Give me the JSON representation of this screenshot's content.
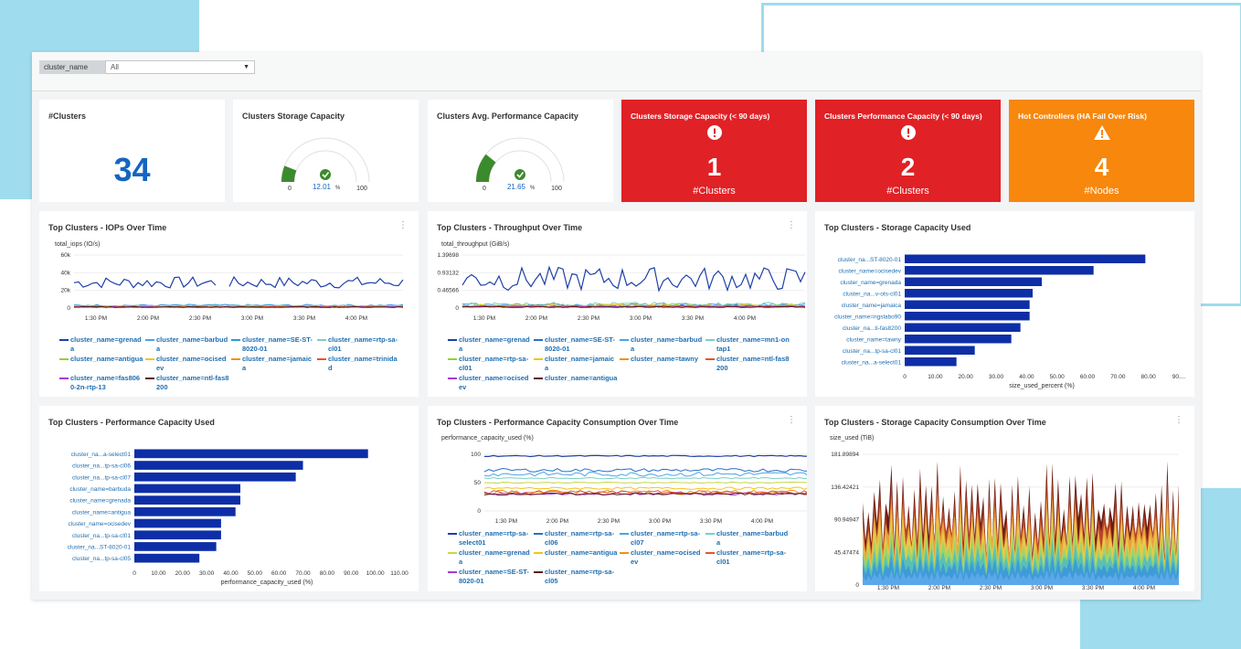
{
  "filter": {
    "label": "cluster_name",
    "value": "All"
  },
  "kpi": {
    "clusters": {
      "title": "#Clusters",
      "value": "34"
    },
    "storage_gauge": {
      "title": "Clusters Storage Capacity",
      "value": "12.01",
      "unit": "%",
      "min": "0",
      "max": "100",
      "color": "#3c8a2e"
    },
    "perf_gauge": {
      "title": "Clusters Avg. Performance Capacity",
      "value": "21.65",
      "unit": "%",
      "min": "0",
      "max": "100",
      "color": "#3c8a2e"
    },
    "alert_storage": {
      "title": "Clusters Storage Capacity (< 90 days)",
      "value": "1",
      "sub": "#Clusters",
      "color": "#e02126",
      "icon": "exclamation-circle-icon"
    },
    "alert_perf": {
      "title": "Clusters Performance Capacity (< 90 days)",
      "value": "2",
      "sub": "#Clusters",
      "color": "#e02126",
      "icon": "exclamation-circle-icon"
    },
    "alert_hot": {
      "title": "Hot Controllers (HA Fail Over Risk)",
      "value": "4",
      "sub": "#Nodes",
      "color": "#f7870d",
      "icon": "warning-triangle-icon"
    }
  },
  "panels": {
    "iops": {
      "title": "Top Clusters - IOPs Over Time",
      "ylabel": "total_iops (IO/s)",
      "yticks": [
        "60k",
        "40k",
        "20k",
        "0"
      ],
      "xticks": [
        "1:30 PM",
        "2:00 PM",
        "2:30 PM",
        "3:00 PM",
        "3:30 PM",
        "4:00 PM"
      ],
      "legend": [
        {
          "name": "cluster_name=grenada",
          "color": "#1f3fa6"
        },
        {
          "name": "cluster_name=barbuda",
          "color": "#4da3e6"
        },
        {
          "name": "cluster_name=SE-ST-8020-01",
          "color": "#2b9bd8"
        },
        {
          "name": "cluster_name=rtp-sa-cl01",
          "color": "#7ccfc3"
        },
        {
          "name": "cluster_name=antigua",
          "color": "#9acd32"
        },
        {
          "name": "cluster_name=ocisedev",
          "color": "#f2c41a"
        },
        {
          "name": "cluster_name=jamaica",
          "color": "#f2901a"
        },
        {
          "name": "cluster_name=trinidad",
          "color": "#e8542c"
        },
        {
          "name": "cluster_name=fas8060-2n-rtp-13",
          "color": "#a23bd6"
        },
        {
          "name": "cluster_name=ntl-fas8200",
          "color": "#5a1a1a"
        }
      ]
    },
    "throughput": {
      "title": "Top Clusters - Throughput Over Time",
      "ylabel": "total_throughput (GiB/s)",
      "yticks": [
        "1.39698",
        "0.93132",
        "0.46566",
        "0"
      ],
      "xticks": [
        "1:30 PM",
        "2:00 PM",
        "2:30 PM",
        "3:00 PM",
        "3:30 PM",
        "4:00 PM"
      ],
      "legend": [
        {
          "name": "cluster_name=grenada",
          "color": "#1f3fa6"
        },
        {
          "name": "cluster_name=SE-ST-8020-01",
          "color": "#2b6fc8"
        },
        {
          "name": "cluster_name=barbuda",
          "color": "#4da3e6"
        },
        {
          "name": "cluster_name=mn1-ontap1",
          "color": "#7ccfc3"
        },
        {
          "name": "cluster_name=rtp-sa-cl01",
          "color": "#9acd32"
        },
        {
          "name": "cluster_name=jamaica",
          "color": "#f2c41a"
        },
        {
          "name": "cluster_name=tawny",
          "color": "#f2901a"
        },
        {
          "name": "cluster_name=ntl-fas8200",
          "color": "#e8542c"
        },
        {
          "name": "cluster_name=ocisedev",
          "color": "#a23bd6"
        },
        {
          "name": "cluster_name=antigua",
          "color": "#5a1a1a"
        }
      ]
    },
    "storage_used": {
      "title": "Top Clusters - Storage Capacity Used",
      "xlabel": "size_used_percent (%)",
      "xticks": [
        "0",
        "10.00",
        "20.00",
        "30.00",
        "40.00",
        "50.00",
        "60.00",
        "70.00",
        "80.00",
        "90...."
      ],
      "bar_color": "#0d2ea6"
    },
    "perf_used": {
      "title": "Top Clusters - Performance Capacity Used",
      "xlabel": "performance_capacity_used (%)",
      "xticks": [
        "0",
        "10.00",
        "20.00",
        "30.00",
        "40.00",
        "50.00",
        "60.00",
        "70.00",
        "80.00",
        "90.00",
        "100.00",
        "110.00"
      ],
      "bar_color": "#0d2ea6"
    },
    "perf_consumption": {
      "title": "Top Clusters - Performance Capacity Consumption Over Time",
      "ylabel": "performance_capacity_used (%)",
      "yticks": [
        "100",
        "50",
        "0"
      ],
      "xticks": [
        "1:30 PM",
        "2:00 PM",
        "2:30 PM",
        "3:00 PM",
        "3:30 PM",
        "4:00 PM"
      ],
      "legend": [
        {
          "name": "cluster_name=rtp-sa-select01",
          "color": "#1f3fa6"
        },
        {
          "name": "cluster_name=rtp-sa-cl06",
          "color": "#2b6fc8"
        },
        {
          "name": "cluster_name=rtp-sa-cl07",
          "color": "#4da3e6"
        },
        {
          "name": "cluster_name=barbuda",
          "color": "#7ccfc3"
        },
        {
          "name": "cluster_name=grenada",
          "color": "#c8d84a"
        },
        {
          "name": "cluster_name=antigua",
          "color": "#f2c41a"
        },
        {
          "name": "cluster_name=ocisedev",
          "color": "#f2901a"
        },
        {
          "name": "cluster_name=rtp-sa-cl01",
          "color": "#e8542c"
        },
        {
          "name": "cluster_name=SE-ST-8020-01",
          "color": "#a23bd6"
        },
        {
          "name": "cluster_name=rtp-sa-cl05",
          "color": "#5a1a1a"
        }
      ]
    },
    "storage_consumption": {
      "title": "Top Clusters - Storage Capacity Consumption Over Time",
      "ylabel": "size_used (TiB)",
      "yticks": [
        "181.89894",
        "136.42421",
        "90.94947",
        "45.47474",
        "0"
      ],
      "xticks": [
        "1:30 PM",
        "2:00 PM",
        "2:30 PM",
        "3:00 PM",
        "3:30 PM",
        "4:00 PM"
      ]
    }
  },
  "chart_data": [
    {
      "type": "bar",
      "title": "Top Clusters - Storage Capacity Used",
      "orientation": "horizontal",
      "categories": [
        "cluster_na...ST-8020-01",
        "cluster_name=ocisedev",
        "cluster_name=grenada",
        "cluster_na...v-ots-cl01",
        "cluster_name=jamaica",
        "cluster_name=ngslabo90",
        "cluster_na...ti-fas8200",
        "cluster_name=tawny",
        "cluster_na...tp-sa-cl01",
        "cluster_na...a-select01"
      ],
      "values": [
        79,
        62,
        45,
        42,
        41,
        41,
        38,
        35,
        23,
        17
      ],
      "xlabel": "size_used_percent (%)",
      "xlim": [
        0,
        90
      ]
    },
    {
      "type": "bar",
      "title": "Top Clusters - Performance Capacity Used",
      "orientation": "horizontal",
      "categories": [
        "cluster_na...a-select01",
        "cluster_na...tp-sa-cl06",
        "cluster_na...tp-sa-cl07",
        "cluster_name=barbuda",
        "cluster_name=grenada",
        "cluster_name=antigua",
        "cluster_name=ocisedev",
        "cluster_na...tp-sa-cl01",
        "cluster_na...ST-8020-01",
        "cluster_na...tp-sa-cl05"
      ],
      "values": [
        97,
        70,
        67,
        44,
        44,
        42,
        36,
        36,
        34,
        27
      ],
      "xlabel": "performance_capacity_used (%)",
      "xlim": [
        0,
        110
      ]
    },
    {
      "type": "gauge",
      "title": "Clusters Storage Capacity",
      "value": 12.01,
      "range": [
        0,
        100
      ]
    },
    {
      "type": "gauge",
      "title": "Clusters Avg. Performance Capacity",
      "value": 21.65,
      "range": [
        0,
        100
      ]
    }
  ]
}
